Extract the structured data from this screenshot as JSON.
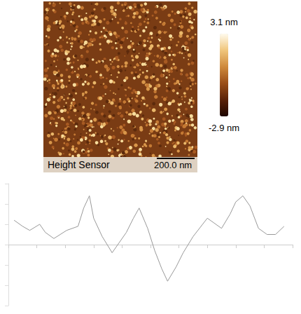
{
  "image": {
    "label": "Height Sensor",
    "scale_bar": "200.0 nm",
    "color_bar": {
      "min": -2.9,
      "max": 3.1,
      "min_label": "-2.9 nm",
      "max_label": "3.1 nm"
    }
  },
  "chart_data": {
    "type": "line",
    "color": "#999999",
    "x": [
      20,
      50,
      75,
      110,
      130,
      160,
      205,
      245,
      265,
      285,
      300,
      330,
      365,
      390,
      415,
      440,
      460,
      490,
      515,
      540,
      560,
      590,
      615,
      650,
      700,
      750,
      780,
      800,
      825,
      850,
      880,
      910,
      940,
      970
    ],
    "values": [
      1.2,
      0.9,
      0.7,
      1.0,
      0.6,
      0.3,
      0.7,
      0.9,
      1.8,
      2.4,
      1.3,
      0.4,
      -0.4,
      0.1,
      0.6,
      1.3,
      1.8,
      0.8,
      -0.3,
      -1.2,
      -1.8,
      -1.1,
      -0.4,
      0.4,
      1.3,
      0.8,
      1.5,
      2.1,
      2.4,
      1.9,
      0.8,
      0.5,
      0.5,
      0.9
    ],
    "xlim": [
      0,
      1000
    ],
    "xticks": [
      0,
      100,
      200,
      300,
      400,
      500,
      600,
      700,
      800,
      900,
      1000
    ],
    "ylim": [
      -3,
      3
    ],
    "yticks": [
      -3,
      -2,
      -1,
      0,
      1,
      2,
      3
    ],
    "tick_labels": false,
    "grid": false
  }
}
